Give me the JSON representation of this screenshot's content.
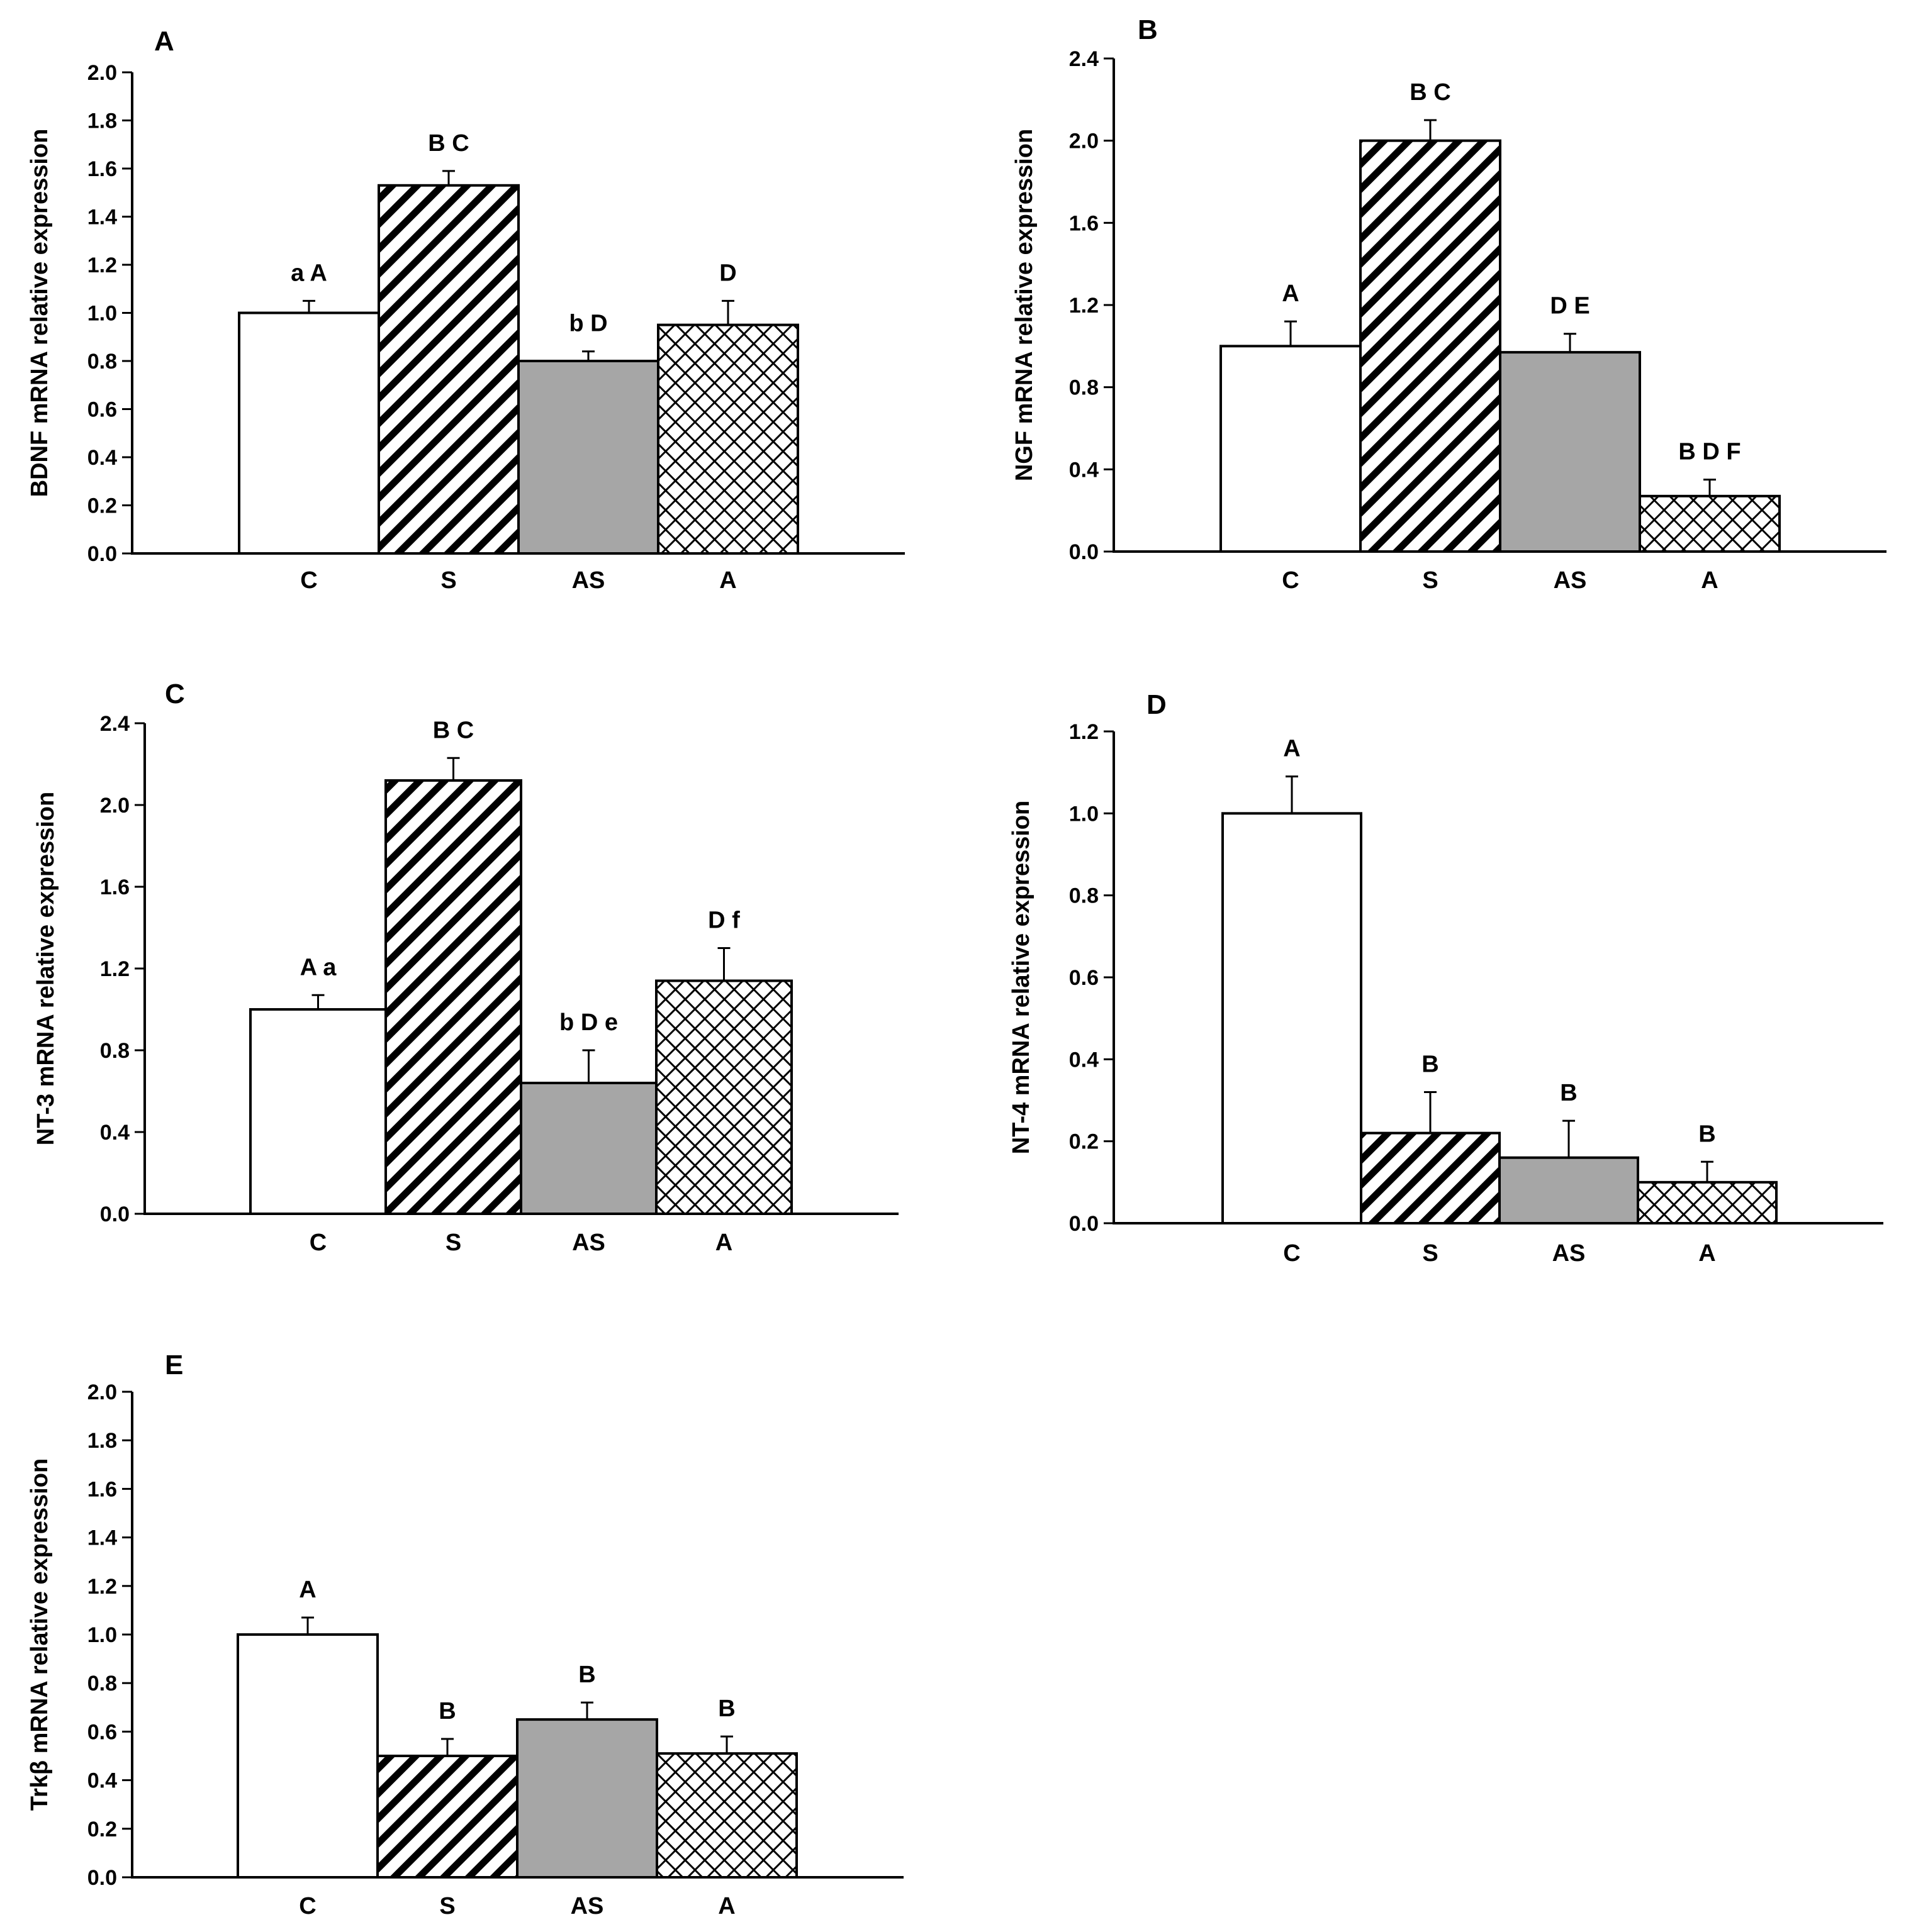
{
  "figure": {
    "categories": [
      "C",
      "S",
      "AS",
      "A"
    ],
    "bar_styles": [
      "white",
      "diagonal",
      "gray",
      "crosshatch"
    ],
    "colors": {
      "axis": "#000000",
      "gray_fill": "#a6a6a6",
      "white_fill": "#ffffff"
    }
  },
  "chart_data": [
    {
      "panel": "A",
      "type": "bar",
      "categories": [
        "C",
        "S",
        "AS",
        "A"
      ],
      "values": [
        1.0,
        1.53,
        0.8,
        0.95
      ],
      "errors": [
        0.05,
        0.06,
        0.04,
        0.1
      ],
      "annotations": [
        "a A",
        "B C",
        "b D",
        "D"
      ],
      "ylabel": "BDNF mRNA relative expression",
      "ylim": [
        0,
        2.0
      ],
      "yticks": [
        "0.0",
        "0.2",
        "0.4",
        "0.6",
        "0.8",
        "1.0",
        "1.2",
        "1.4",
        "1.6",
        "1.8",
        "2.0"
      ]
    },
    {
      "panel": "B",
      "type": "bar",
      "categories": [
        "C",
        "S",
        "AS",
        "A"
      ],
      "values": [
        1.0,
        2.0,
        0.97,
        0.27
      ],
      "errors": [
        0.12,
        0.1,
        0.09,
        0.08
      ],
      "annotations": [
        "A",
        "B C",
        "D E",
        "B D F"
      ],
      "ylabel": "NGF mRNA relative expression",
      "ylim": [
        0,
        2.4
      ],
      "yticks": [
        "0.0",
        "0.4",
        "0.8",
        "1.2",
        "1.6",
        "2.0",
        "2.4"
      ]
    },
    {
      "panel": "C",
      "type": "bar",
      "categories": [
        "C",
        "S",
        "AS",
        "A"
      ],
      "values": [
        1.0,
        2.12,
        0.64,
        1.14
      ],
      "errors": [
        0.07,
        0.11,
        0.16,
        0.16
      ],
      "annotations": [
        "A a",
        "B C",
        "b D e",
        "D f"
      ],
      "ylabel": "NT-3 mRNA relative expression",
      "ylim": [
        0,
        2.4
      ],
      "yticks": [
        "0.0",
        "0.4",
        "0.8",
        "1.2",
        "1.6",
        "2.0",
        "2.4"
      ]
    },
    {
      "panel": "D",
      "type": "bar",
      "categories": [
        "C",
        "S",
        "AS",
        "A"
      ],
      "values": [
        1.0,
        0.22,
        0.16,
        0.1
      ],
      "errors": [
        0.09,
        0.1,
        0.09,
        0.05
      ],
      "annotations": [
        "A",
        "B",
        "B",
        "B"
      ],
      "ylabel": "NT-4 mRNA relative expression",
      "ylim": [
        0,
        1.2
      ],
      "yticks": [
        "0.0",
        "0.2",
        "0.4",
        "0.6",
        "0.8",
        "1.0",
        "1.2"
      ]
    },
    {
      "panel": "E",
      "type": "bar",
      "categories": [
        "C",
        "S",
        "AS",
        "A"
      ],
      "values": [
        1.0,
        0.5,
        0.65,
        0.51
      ],
      "errors": [
        0.07,
        0.07,
        0.07,
        0.07
      ],
      "annotations": [
        "A",
        "B",
        "B",
        "B"
      ],
      "ylabel": "Trkβ mRNA relative expression",
      "ylim": [
        0,
        2.0
      ],
      "yticks": [
        "0.0",
        "0.2",
        "0.4",
        "0.6",
        "0.8",
        "1.0",
        "1.2",
        "1.4",
        "1.6",
        "1.8",
        "2.0"
      ]
    }
  ]
}
